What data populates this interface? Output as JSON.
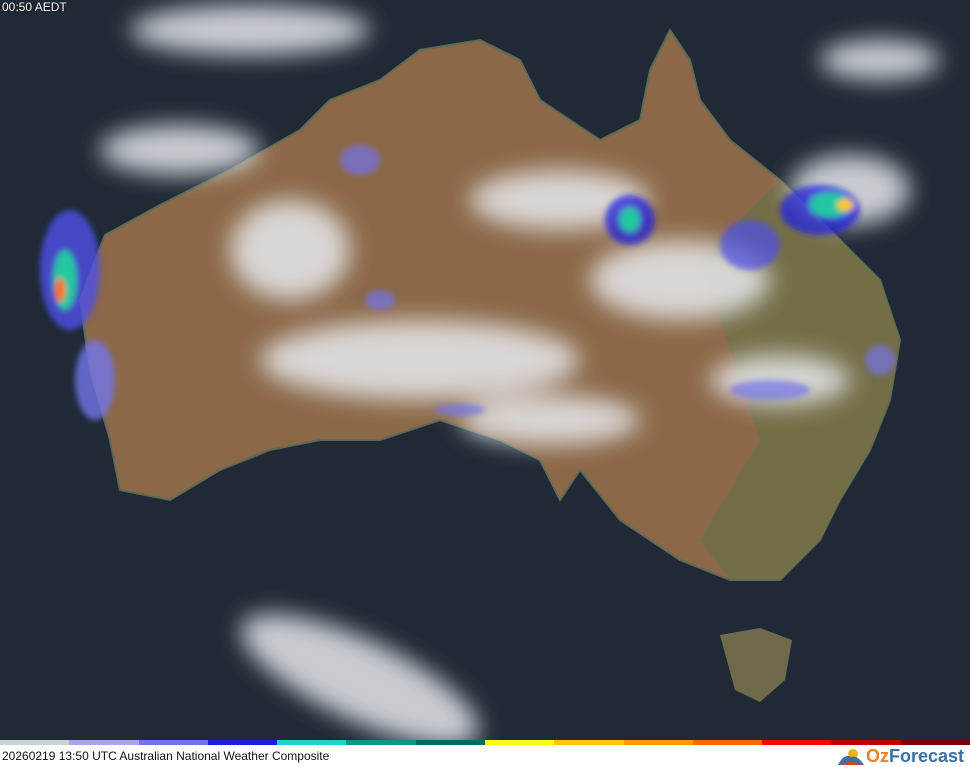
{
  "map": {
    "local_time": "00:50 AEDT",
    "caption": "20260219 13:50 UTC Australian National Weather Composite",
    "colors": {
      "ocean": "#1f2a36",
      "land": "#8b6848",
      "cloud": "#e8eaee"
    },
    "legend_colors": [
      "#c6d4d4",
      "#a8a8f0",
      "#7474ea",
      "#1c1ce0",
      "#20d2c8",
      "#10948e",
      "#006a66",
      "#ffff00",
      "#ffc800",
      "#ff9a00",
      "#ff6a00",
      "#ff0000",
      "#c40000",
      "#780000"
    ]
  },
  "brand": {
    "oz": "Oz",
    "forecast": "Forecast",
    "icon": "sun-cloud-logo-icon"
  }
}
